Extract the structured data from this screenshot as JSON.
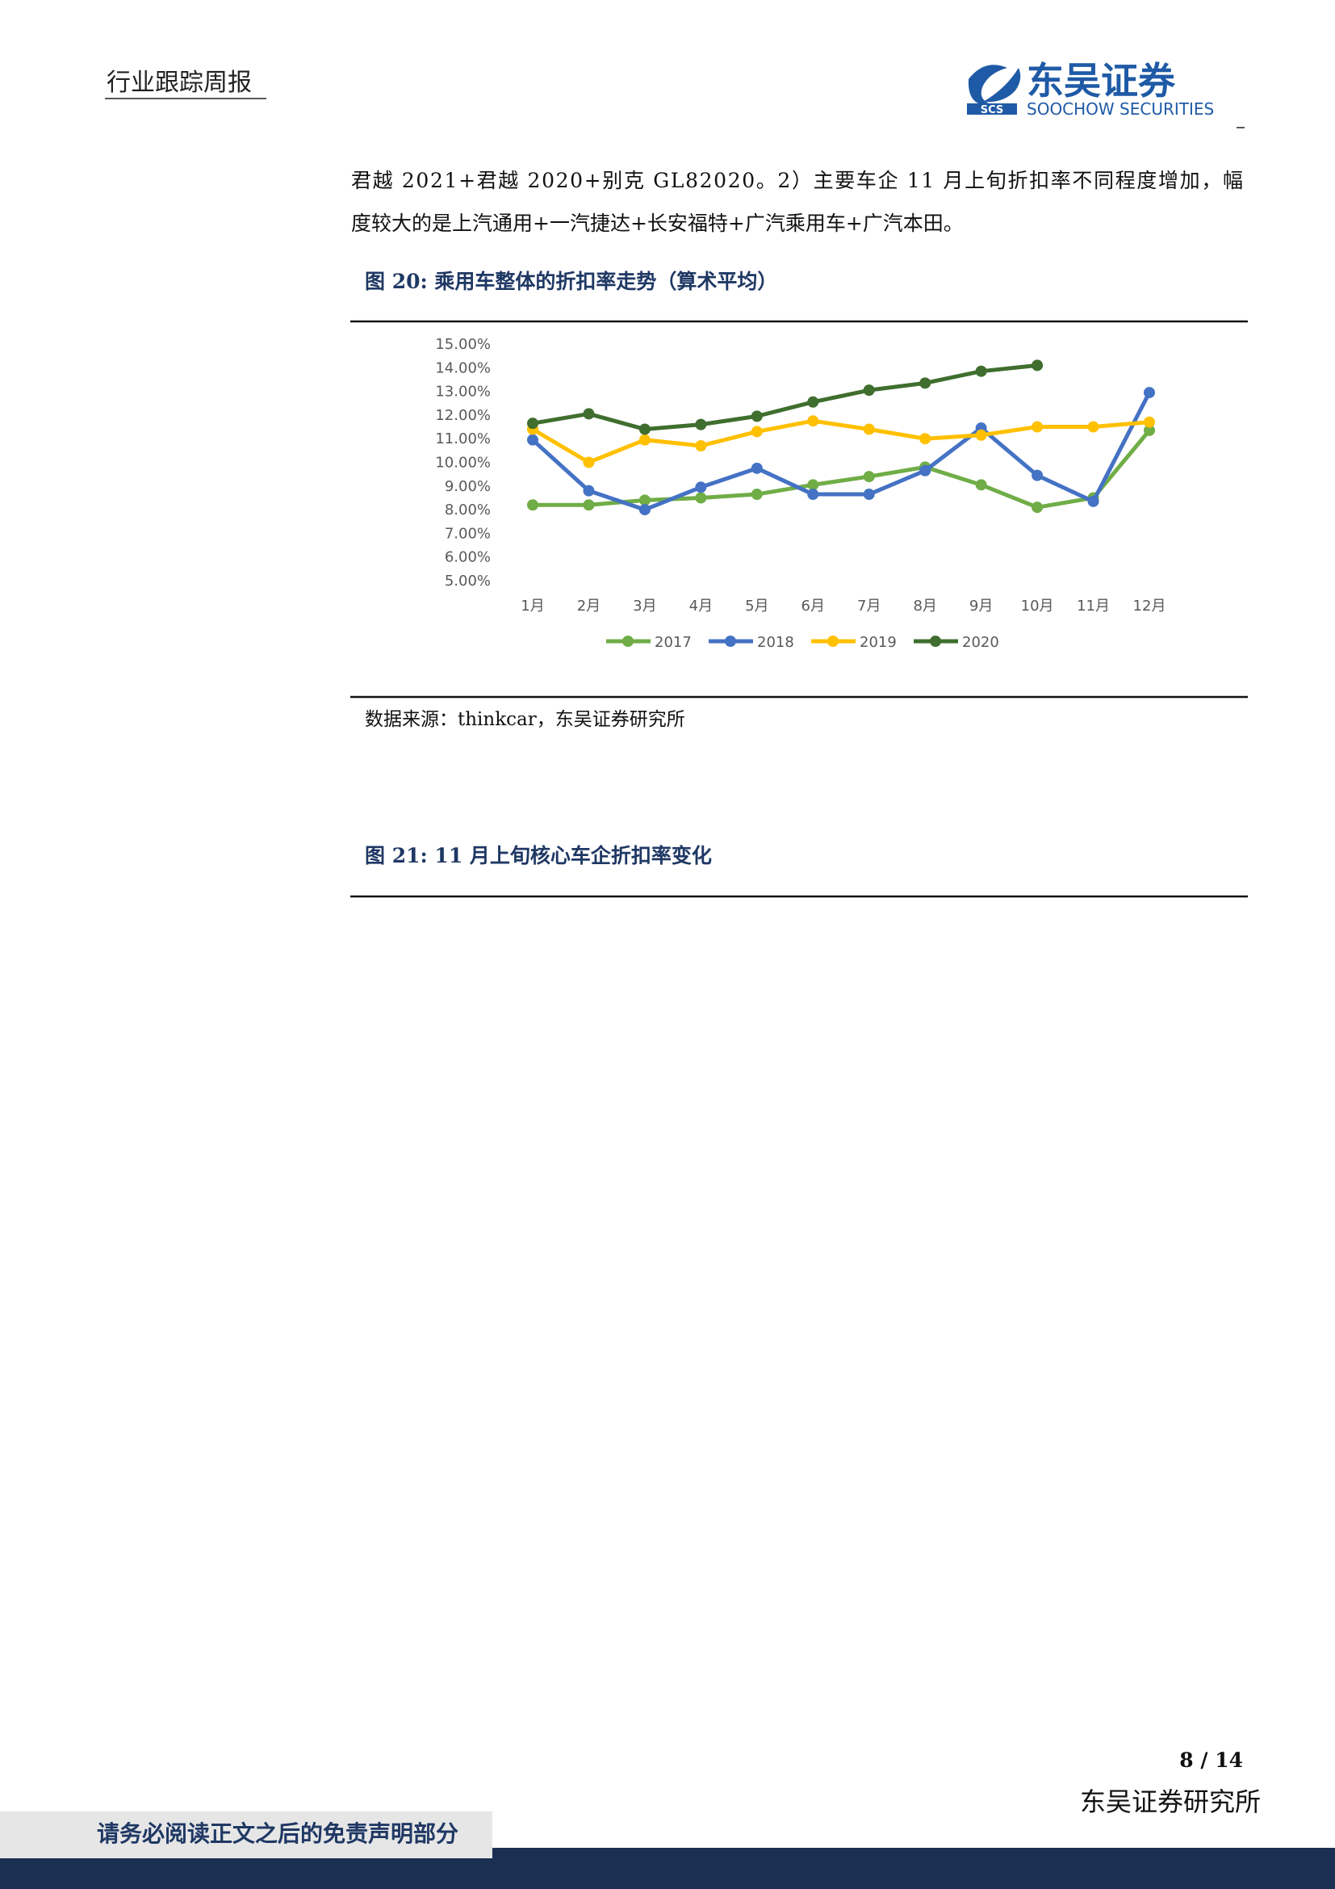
{
  "header": {
    "title": "行业跟踪周报",
    "logo_name": "东吴证券",
    "logo_english": "SOOCHOW SECURITIES",
    "logo_mark": "SCS"
  },
  "paragraph": {
    "lines": [
      "君越 2021+君越 2020+别克 GL82020。2）主要车企 11 月上旬折扣率不同程度增加，幅",
      "度较大的是上汽通用+一汽捷达+长安福特+广汽乘用车+广汽本田。"
    ]
  },
  "figures": [
    {
      "title": "图 20:  乘用车整体的折扣率走势（算术平均）",
      "source": "数据来源：thinkcar，东吴证券研究所"
    },
    {
      "title": "图 21:  11 月上旬核心车企折扣率变化"
    }
  ],
  "chart_data": {
    "type": "line",
    "categories": [
      "1月",
      "2月",
      "3月",
      "4月",
      "5月",
      "6月",
      "7月",
      "8月",
      "9月",
      "10月",
      "11月",
      "12月"
    ],
    "series": [
      {
        "name": "2017",
        "color": "#70ad47",
        "values": [
          8.2,
          8.2,
          8.4,
          8.5,
          8.65,
          9.05,
          9.4,
          9.8,
          9.05,
          8.1,
          8.5,
          11.35
        ]
      },
      {
        "name": "2018",
        "color": "#4472c4",
        "values": [
          10.95,
          8.8,
          8.0,
          8.95,
          9.75,
          8.65,
          8.65,
          9.65,
          11.45,
          9.45,
          8.35,
          12.95
        ]
      },
      {
        "name": "2019",
        "color": "#ffc000",
        "values": [
          11.4,
          10.0,
          10.95,
          10.7,
          11.3,
          11.75,
          11.4,
          11.0,
          11.15,
          11.5,
          11.5,
          11.7
        ]
      },
      {
        "name": "2020",
        "color": "#3f6e2e",
        "values": [
          11.65,
          12.05,
          11.4,
          11.6,
          11.95,
          12.55,
          13.05,
          13.35,
          13.85,
          14.1,
          null,
          null
        ]
      }
    ],
    "ylim": [
      5,
      15
    ],
    "yticks": [
      {
        "value": 5,
        "label": "5.00%"
      },
      {
        "value": 6,
        "label": "6.00%"
      },
      {
        "value": 7,
        "label": "7.00%"
      },
      {
        "value": 8,
        "label": "8.00%"
      },
      {
        "value": 9,
        "label": "9.00%"
      },
      {
        "value": 10,
        "label": "10.00%"
      },
      {
        "value": 11,
        "label": "11.00%"
      },
      {
        "value": 12,
        "label": "12.00%"
      },
      {
        "value": 13,
        "label": "13.00%"
      },
      {
        "value": 14,
        "label": "14.00%"
      },
      {
        "value": 15,
        "label": "15.00%"
      }
    ],
    "grid": false,
    "legend": "bottom"
  },
  "page_number": "8 / 14",
  "footer": {
    "institute": "东吴证券研究所",
    "disclaimer": "请务必阅读正文之后的免责声明部分"
  }
}
